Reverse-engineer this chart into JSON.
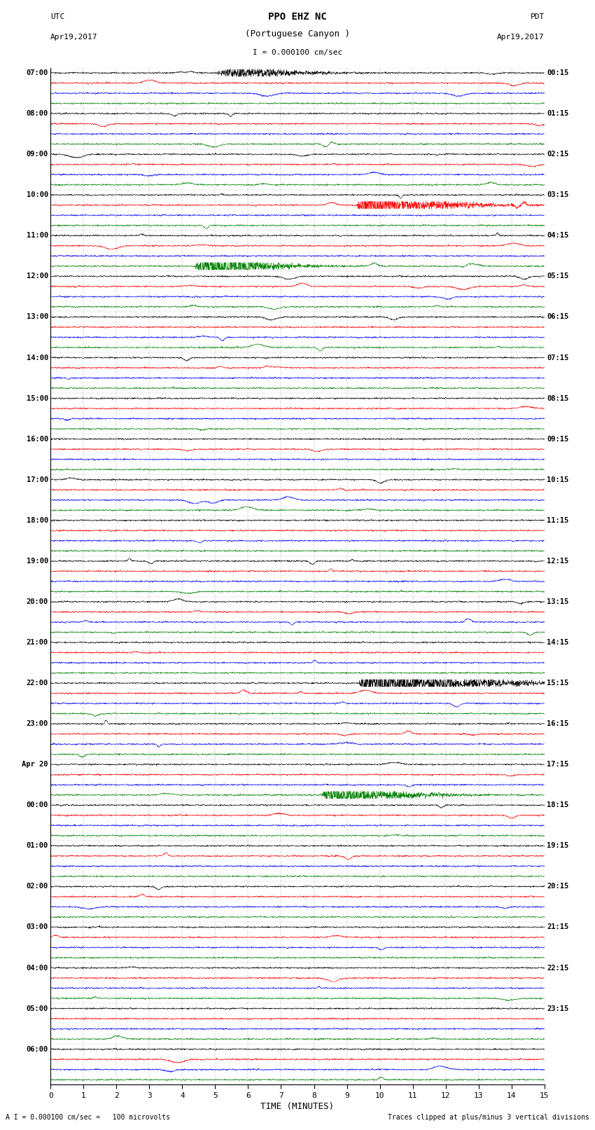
{
  "title_line1": "PPO EHZ NC",
  "title_line2": "(Portuguese Canyon )",
  "scale_label": "I = 0.000100 cm/sec",
  "utc_label": "UTC",
  "utc_date": "Apr19,2017",
  "pdt_label": "PDT",
  "pdt_date": "Apr19,2017",
  "xlabel": "TIME (MINUTES)",
  "footer_left": "A I = 0.000100 cm/sec =   100 microvolts",
  "footer_right": "Traces clipped at plus/minus 3 vertical divisions",
  "left_hour_labels": [
    "07:00",
    "08:00",
    "09:00",
    "10:00",
    "11:00",
    "12:00",
    "13:00",
    "14:00",
    "15:00",
    "16:00",
    "17:00",
    "18:00",
    "19:00",
    "20:00",
    "21:00",
    "22:00",
    "23:00",
    "Apr 20",
    "00:00",
    "01:00",
    "02:00",
    "03:00",
    "04:00",
    "05:00",
    "06:00"
  ],
  "right_hour_labels": [
    "00:15",
    "01:15",
    "02:15",
    "03:15",
    "04:15",
    "05:15",
    "06:15",
    "07:15",
    "08:15",
    "09:15",
    "10:15",
    "11:15",
    "12:15",
    "13:15",
    "14:15",
    "15:15",
    "16:15",
    "17:15",
    "18:15",
    "19:15",
    "20:15",
    "21:15",
    "22:15",
    "23:15",
    ""
  ],
  "trace_colors": [
    "black",
    "red",
    "blue",
    "green"
  ],
  "bg_color": "white",
  "n_minutes": 15,
  "xticks": [
    0,
    1,
    2,
    3,
    4,
    5,
    6,
    7,
    8,
    9,
    10,
    11,
    12,
    13,
    14,
    15
  ],
  "n_hours": 25,
  "traces_per_hour": 4,
  "noise_amp": 0.035,
  "spike_prob": 0.12,
  "trace_linewidth": 0.4
}
